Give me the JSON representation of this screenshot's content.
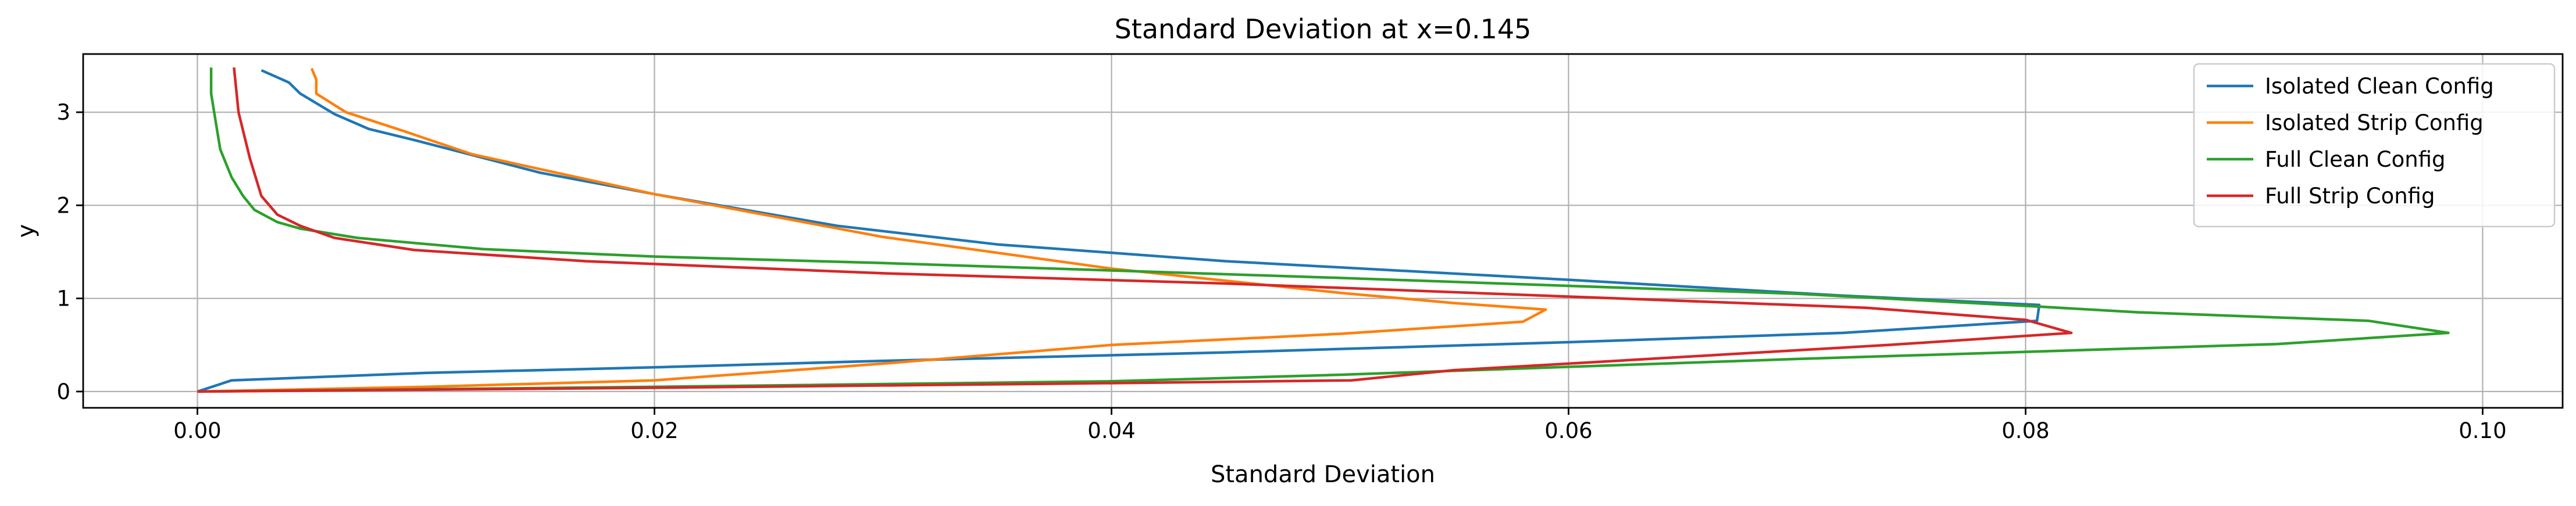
{
  "chart_data": {
    "type": "line",
    "title": "Standard Deviation at x=0.145",
    "xlabel": "Standard Deviation",
    "ylabel": "y",
    "xlim": [
      -0.005,
      0.1035
    ],
    "ylim": [
      -0.175,
      3.625
    ],
    "xticks": [
      0.0,
      0.02,
      0.04,
      0.06,
      0.08,
      0.1
    ],
    "xtick_labels": [
      "0.00",
      "0.02",
      "0.04",
      "0.06",
      "0.08",
      "0.10"
    ],
    "yticks": [
      0,
      1,
      2,
      3
    ],
    "ytick_labels": [
      "0",
      "1",
      "2",
      "3"
    ],
    "grid": true,
    "legend_position": "top-right",
    "series": [
      {
        "name": "Isolated Clean Config",
        "color": "#1f77b4",
        "points": [
          [
            0.0,
            0.0
          ],
          [
            0.0015,
            0.12
          ],
          [
            0.01,
            0.2
          ],
          [
            0.02,
            0.26
          ],
          [
            0.03,
            0.33
          ],
          [
            0.045,
            0.42
          ],
          [
            0.06,
            0.53
          ],
          [
            0.072,
            0.63
          ],
          [
            0.0805,
            0.76
          ],
          [
            0.0806,
            0.93
          ],
          [
            0.072,
            1.03
          ],
          [
            0.06,
            1.2
          ],
          [
            0.045,
            1.4
          ],
          [
            0.035,
            1.58
          ],
          [
            0.028,
            1.78
          ],
          [
            0.02,
            2.12
          ],
          [
            0.015,
            2.35
          ],
          [
            0.0095,
            2.7
          ],
          [
            0.0075,
            2.82
          ],
          [
            0.006,
            2.98
          ],
          [
            0.0045,
            3.2
          ],
          [
            0.004,
            3.32
          ],
          [
            0.0028,
            3.45
          ]
        ]
      },
      {
        "name": "Isolated Strip Config",
        "color": "#ff7f0e",
        "points": [
          [
            0.0,
            0.0
          ],
          [
            0.01,
            0.05
          ],
          [
            0.02,
            0.12
          ],
          [
            0.03,
            0.3
          ],
          [
            0.04,
            0.5
          ],
          [
            0.05,
            0.62
          ],
          [
            0.058,
            0.75
          ],
          [
            0.059,
            0.88
          ],
          [
            0.055,
            0.95
          ],
          [
            0.05,
            1.06
          ],
          [
            0.04,
            1.32
          ],
          [
            0.03,
            1.66
          ],
          [
            0.02,
            2.12
          ],
          [
            0.012,
            2.55
          ],
          [
            0.009,
            2.8
          ],
          [
            0.0065,
            3.0
          ],
          [
            0.0052,
            3.2
          ],
          [
            0.0052,
            3.35
          ],
          [
            0.005,
            3.47
          ]
        ]
      },
      {
        "name": "Full Clean Config",
        "color": "#2ca02c",
        "points": [
          [
            0.0,
            0.0
          ],
          [
            0.02,
            0.05
          ],
          [
            0.04,
            0.11
          ],
          [
            0.05,
            0.18
          ],
          [
            0.07,
            0.35
          ],
          [
            0.091,
            0.51
          ],
          [
            0.0985,
            0.63
          ],
          [
            0.095,
            0.76
          ],
          [
            0.085,
            0.85
          ],
          [
            0.08,
            0.92
          ],
          [
            0.07,
            1.05
          ],
          [
            0.05,
            1.22
          ],
          [
            0.03,
            1.38
          ],
          [
            0.02,
            1.45
          ],
          [
            0.0125,
            1.53
          ],
          [
            0.007,
            1.65
          ],
          [
            0.0045,
            1.75
          ],
          [
            0.0035,
            1.82
          ],
          [
            0.0025,
            1.95
          ],
          [
            0.002,
            2.1
          ],
          [
            0.0015,
            2.3
          ],
          [
            0.001,
            2.6
          ],
          [
            0.0008,
            2.9
          ],
          [
            0.0006,
            3.2
          ],
          [
            0.0006,
            3.48
          ]
        ]
      },
      {
        "name": "Full Strip Config",
        "color": "#d62728",
        "points": [
          [
            0.0,
            0.0
          ],
          [
            0.02,
            0.04
          ],
          [
            0.04,
            0.09
          ],
          [
            0.0505,
            0.12
          ],
          [
            0.055,
            0.23
          ],
          [
            0.06,
            0.3
          ],
          [
            0.067,
            0.4
          ],
          [
            0.074,
            0.5
          ],
          [
            0.082,
            0.63
          ],
          [
            0.08,
            0.77
          ],
          [
            0.073,
            0.9
          ],
          [
            0.06,
            1.02
          ],
          [
            0.045,
            1.16
          ],
          [
            0.03,
            1.27
          ],
          [
            0.017,
            1.4
          ],
          [
            0.0095,
            1.52
          ],
          [
            0.006,
            1.65
          ],
          [
            0.0045,
            1.78
          ],
          [
            0.0035,
            1.9
          ],
          [
            0.0028,
            2.1
          ],
          [
            0.0023,
            2.5
          ],
          [
            0.0018,
            3.0
          ],
          [
            0.0016,
            3.48
          ]
        ]
      }
    ]
  }
}
